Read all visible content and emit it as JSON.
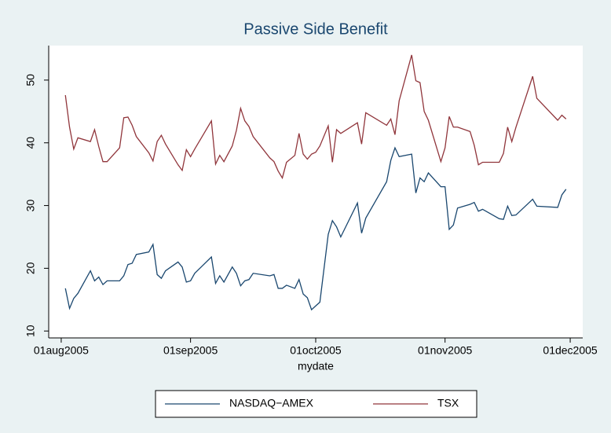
{
  "chart_data": {
    "type": "line",
    "title": "Passive Side Benefit",
    "x_label": "mydate",
    "x": [
      "2005-08-02",
      "2005-08-03",
      "2005-08-04",
      "2005-08-05",
      "2005-08-08",
      "2005-08-09",
      "2005-08-10",
      "2005-08-11",
      "2005-08-12",
      "2005-08-15",
      "2005-08-16",
      "2005-08-17",
      "2005-08-18",
      "2005-08-19",
      "2005-08-22",
      "2005-08-23",
      "2005-08-24",
      "2005-08-25",
      "2005-08-26",
      "2005-08-29",
      "2005-08-30",
      "2005-08-31",
      "2005-09-01",
      "2005-09-02",
      "2005-09-06",
      "2005-09-07",
      "2005-09-08",
      "2005-09-09",
      "2005-09-11",
      "2005-09-12",
      "2005-09-13",
      "2005-09-14",
      "2005-09-15",
      "2005-09-16",
      "2005-09-20",
      "2005-09-21",
      "2005-09-22",
      "2005-09-23",
      "2005-09-24",
      "2005-09-26",
      "2005-09-27",
      "2005-09-28",
      "2005-09-29",
      "2005-09-30",
      "2005-10-01",
      "2005-10-02",
      "2005-10-04",
      "2005-10-05",
      "2005-10-06",
      "2005-10-07",
      "2005-10-11",
      "2005-10-12",
      "2005-10-13",
      "2005-10-18",
      "2005-10-19",
      "2005-10-20",
      "2005-10-21",
      "2005-10-24",
      "2005-10-25",
      "2005-10-26",
      "2005-10-27",
      "2005-10-28",
      "2005-10-31",
      "2005-11-01",
      "2005-11-02",
      "2005-11-03",
      "2005-11-04",
      "2005-11-07",
      "2005-11-08",
      "2005-11-09",
      "2005-11-10",
      "2005-11-14",
      "2005-11-15",
      "2005-11-16",
      "2005-11-17",
      "2005-11-18",
      "2005-11-22",
      "2005-11-23",
      "2005-11-28",
      "2005-11-29",
      "2005-11-30"
    ],
    "series": [
      {
        "name": "NASDAQ−AMEX",
        "color": "#1a476f",
        "values": [
          16.8,
          13.6,
          15.2,
          16,
          19.6,
          18,
          18.6,
          17.4,
          18,
          18,
          18.8,
          20.6,
          20.8,
          22.2,
          22.6,
          23.8,
          19,
          18.4,
          19.6,
          21,
          20.2,
          17.8,
          18,
          19.2,
          21.8,
          17.6,
          18.8,
          17.8,
          20.2,
          19.2,
          17.2,
          18,
          18.2,
          19.2,
          18.8,
          19,
          16.8,
          16.8,
          17.3,
          16.8,
          18.2,
          15.9,
          15.3,
          13.4,
          14,
          14.6,
          25.4,
          27.6,
          26.6,
          25,
          30.4,
          25.6,
          28,
          33.8,
          37.2,
          39.2,
          37.8,
          38.2,
          32,
          34.4,
          33.8,
          35.2,
          33,
          33,
          26.2,
          26.9,
          29.6,
          30.2,
          30.5,
          29.1,
          29.4,
          27.9,
          27.8,
          29.9,
          28.4,
          28.5,
          31,
          29.9,
          29.7,
          31.7,
          32.6
        ]
      },
      {
        "name": "TSX",
        "color": "#90353b",
        "values": [
          47.6,
          42.5,
          39,
          40.8,
          40.2,
          42.1,
          39.4,
          37,
          37,
          39.2,
          44,
          44.1,
          42.8,
          41,
          38.4,
          37.1,
          40.2,
          41.2,
          39.8,
          36.5,
          35.6,
          38.9,
          37.8,
          39,
          43.5,
          36.6,
          38,
          37,
          39.5,
          42,
          45.5,
          43.5,
          42.6,
          41,
          37.6,
          37,
          35.5,
          34.4,
          36.9,
          38,
          41.5,
          38.2,
          37.4,
          38.2,
          38.5,
          39.5,
          42.7,
          36.9,
          42.1,
          41.5,
          43.2,
          39.8,
          44.8,
          42.8,
          43.8,
          41.3,
          46.7,
          54,
          49.9,
          49.6,
          45,
          43.6,
          37,
          39.2,
          44.2,
          42.5,
          42.5,
          41.8,
          39.6,
          36.5,
          36.9,
          36.9,
          38.3,
          42.5,
          40.2,
          42.5,
          50.6,
          47.1,
          43.6,
          44.4,
          43.8
        ]
      }
    ],
    "xlim": [
      "2005-07-29",
      "2005-12-04"
    ],
    "xticks": [
      {
        "value": "2005-08-01",
        "label": "01aug2005"
      },
      {
        "value": "2005-09-01",
        "label": "01sep2005"
      },
      {
        "value": "2005-10-01",
        "label": "01oct2005"
      },
      {
        "value": "2005-11-01",
        "label": "01nov2005"
      },
      {
        "value": "2005-12-01",
        "label": "01dec2005"
      }
    ],
    "ylim": [
      8.9,
      55.5
    ],
    "yticks": [
      10,
      20,
      30,
      40,
      50
    ],
    "grid": false,
    "legend_position": "bottom"
  }
}
